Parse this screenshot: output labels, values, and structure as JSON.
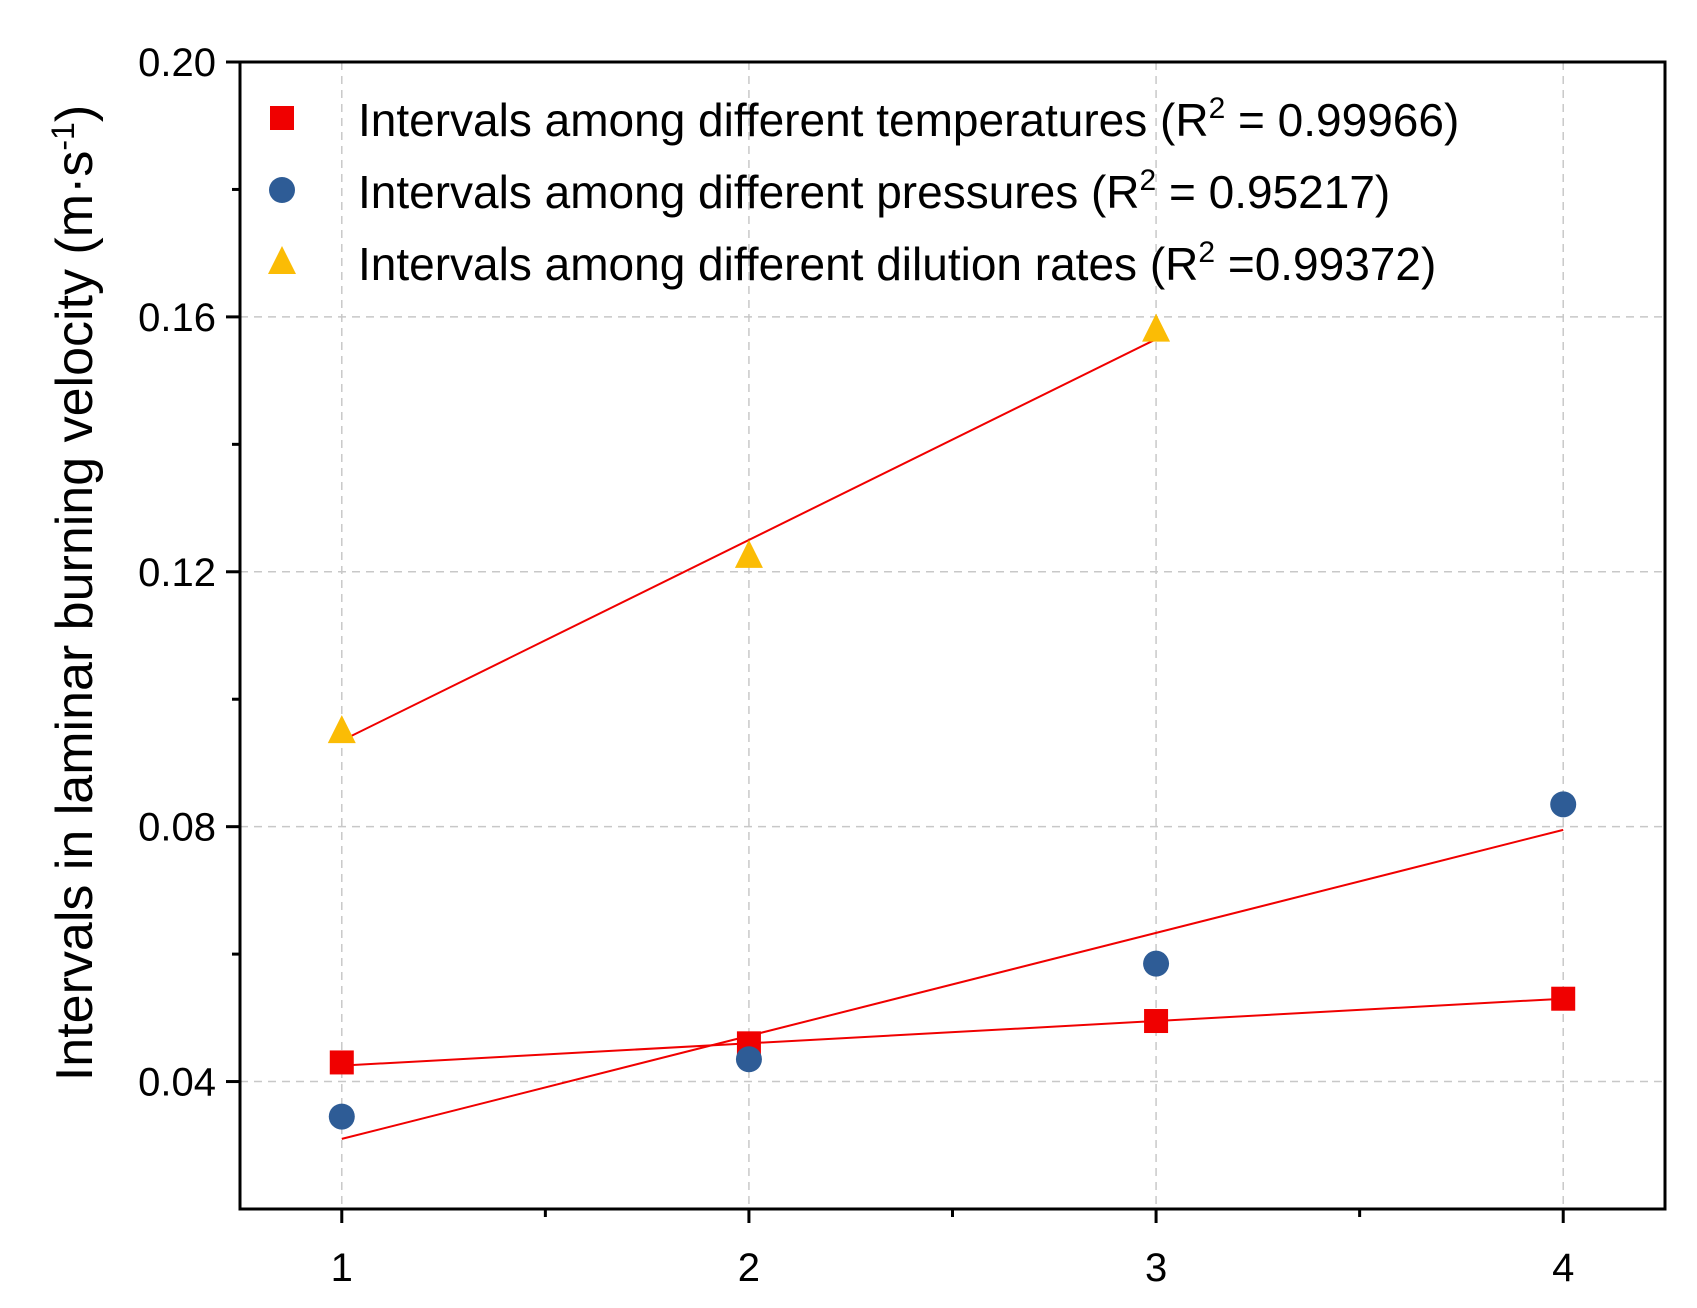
{
  "chart_data": {
    "type": "scatter",
    "title": "",
    "xlabel": "",
    "ylabel": "Intervals in laminar burning velocity (m·s",
    "ylabel_sup": "-1",
    "ylabel_close": ")",
    "xlim": [
      0.75,
      4.25
    ],
    "ylim": [
      0.02,
      0.2
    ],
    "x_ticks": [
      1,
      2,
      3,
      4
    ],
    "x_tick_labels": [
      "1",
      "2",
      "3",
      "4"
    ],
    "y_ticks": [
      0.04,
      0.08,
      0.12,
      0.16,
      0.2
    ],
    "y_tick_labels": [
      "0.04",
      "0.08",
      "0.12",
      "0.16",
      "0.20"
    ],
    "y_minor_ticks": [
      0.06,
      0.1,
      0.14,
      0.18
    ],
    "x_minor_ticks": [
      1.5,
      2.5,
      3.5
    ],
    "grid": true,
    "legend_position": "top-left",
    "fit_color": "#f00000",
    "series": [
      {
        "name": "temperatures",
        "legend_prefix": "Intervals among different temperatures (R",
        "legend_sup": "2",
        "legend_suffix": " = 0.99966)",
        "marker": "square",
        "color": "#f00000",
        "x": [
          1,
          2,
          3,
          4
        ],
        "y": [
          0.043,
          0.046,
          0.0495,
          0.053
        ],
        "fit": {
          "x": [
            1,
            4
          ],
          "y": [
            0.0425,
            0.053
          ]
        }
      },
      {
        "name": "pressures",
        "legend_prefix": "Intervals among different pressures (R",
        "legend_sup": "2",
        "legend_suffix": " = 0.95217)",
        "marker": "circle",
        "color": "#2e5c96",
        "x": [
          1,
          2,
          3,
          4
        ],
        "y": [
          0.0345,
          0.0435,
          0.0585,
          0.0835
        ],
        "fit": {
          "x": [
            1,
            4
          ],
          "y": [
            0.031,
            0.0795
          ]
        }
      },
      {
        "name": "dilution rates",
        "legend_prefix": "Intervals among different dilution rates (R",
        "legend_sup": "2",
        "legend_suffix": " =0.99372)",
        "marker": "triangle",
        "color": "#fbbc05",
        "x": [
          1,
          2,
          3
        ],
        "y": [
          0.095,
          0.1225,
          0.158
        ],
        "fit": {
          "x": [
            1,
            3
          ],
          "y": [
            0.0935,
            0.1565
          ]
        }
      }
    ]
  }
}
